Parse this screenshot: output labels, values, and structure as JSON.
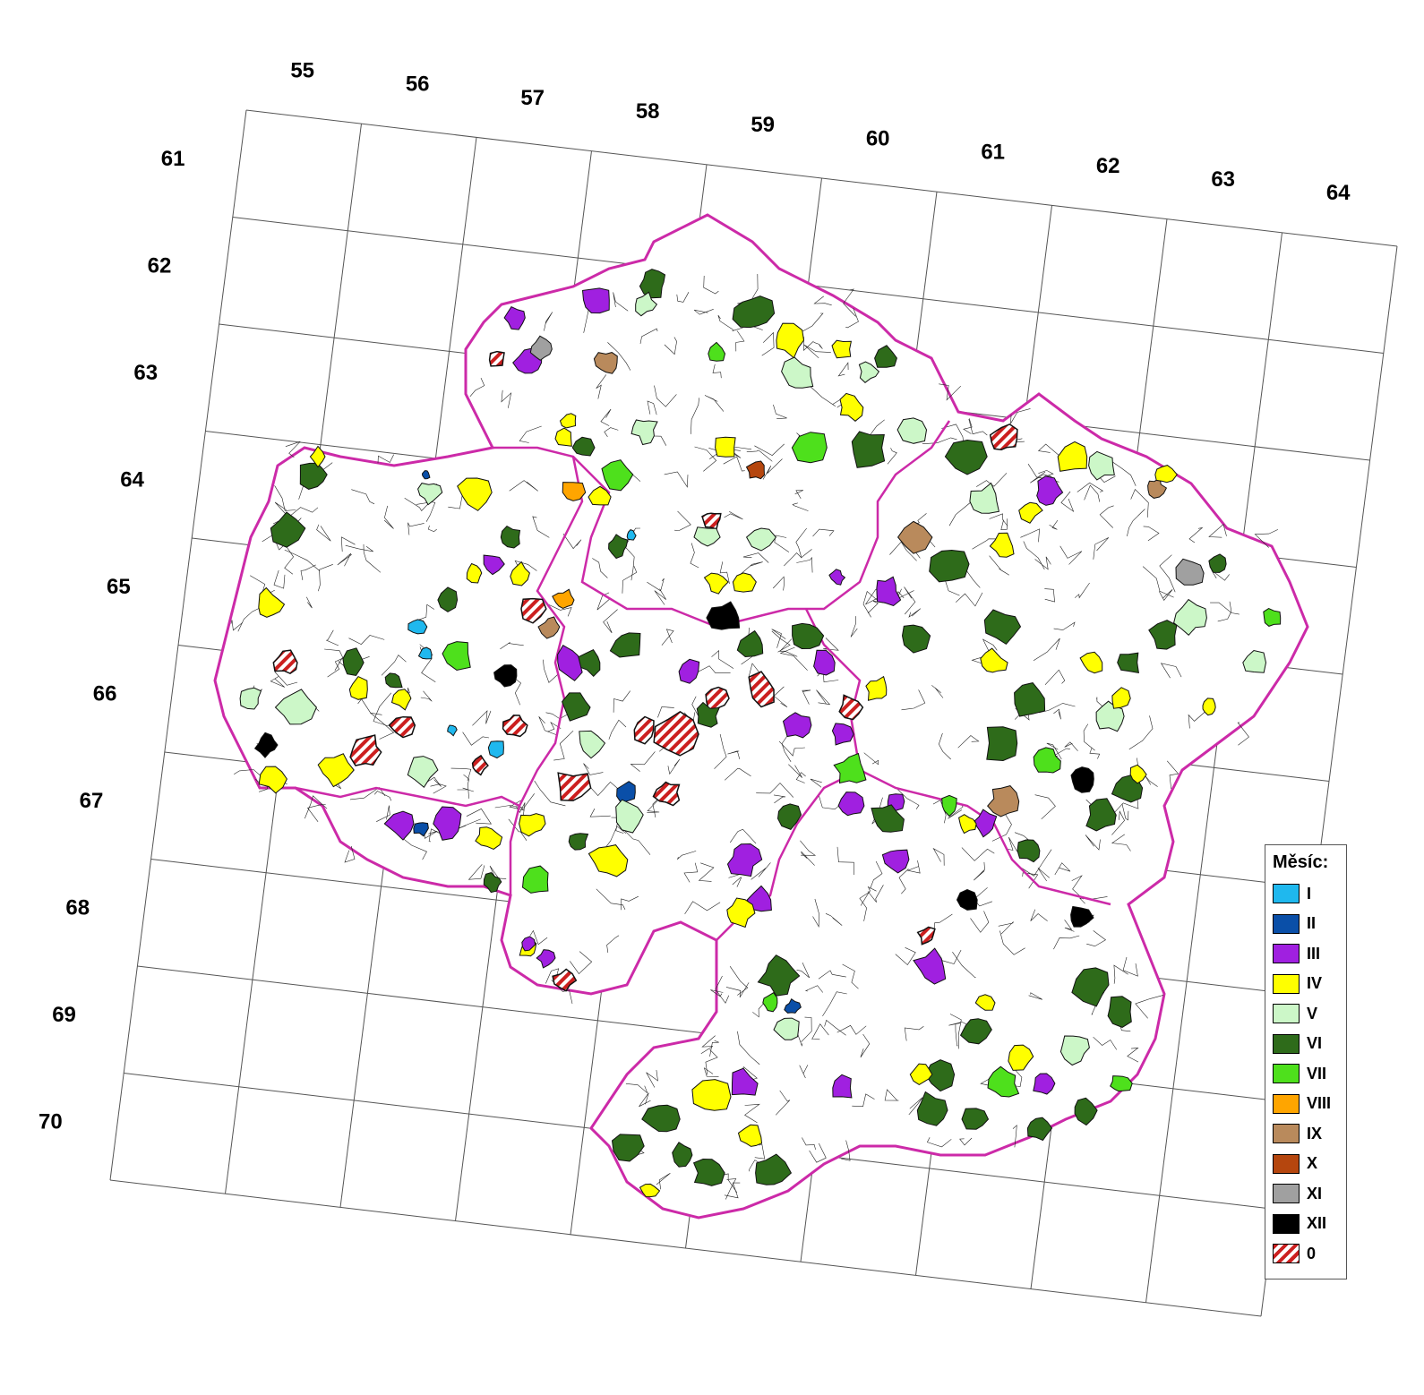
{
  "map": {
    "col_labels": [
      "55",
      "56",
      "57",
      "58",
      "59",
      "60",
      "61",
      "62",
      "63",
      "64"
    ],
    "row_labels": [
      "61",
      "62",
      "63",
      "64",
      "65",
      "66",
      "67",
      "68",
      "69",
      "70"
    ]
  },
  "legend": {
    "title": "Měsíc:",
    "items": [
      {
        "label": "I",
        "color": "#1fb8ee"
      },
      {
        "label": "II",
        "color": "#0a4fa8"
      },
      {
        "label": "III",
        "color": "#a020e0"
      },
      {
        "label": "IV",
        "color": "#ffff00"
      },
      {
        "label": "V",
        "color": "#ccf7c8"
      },
      {
        "label": "VI",
        "color": "#2e6b1a"
      },
      {
        "label": "VII",
        "color": "#4ee01c"
      },
      {
        "label": "VIII",
        "color": "#ffa500"
      },
      {
        "label": "IX",
        "color": "#b98a5c"
      },
      {
        "label": "X",
        "color": "#b5460e"
      },
      {
        "label": "XI",
        "color": "#a0a0a0"
      },
      {
        "label": "XII",
        "color": "#000000"
      },
      {
        "label": "0",
        "color": "hatch-red"
      }
    ]
  },
  "colors": {
    "region_border": "#cc2aa8",
    "grid": "#555555",
    "hatch": "#cc1f1f"
  }
}
